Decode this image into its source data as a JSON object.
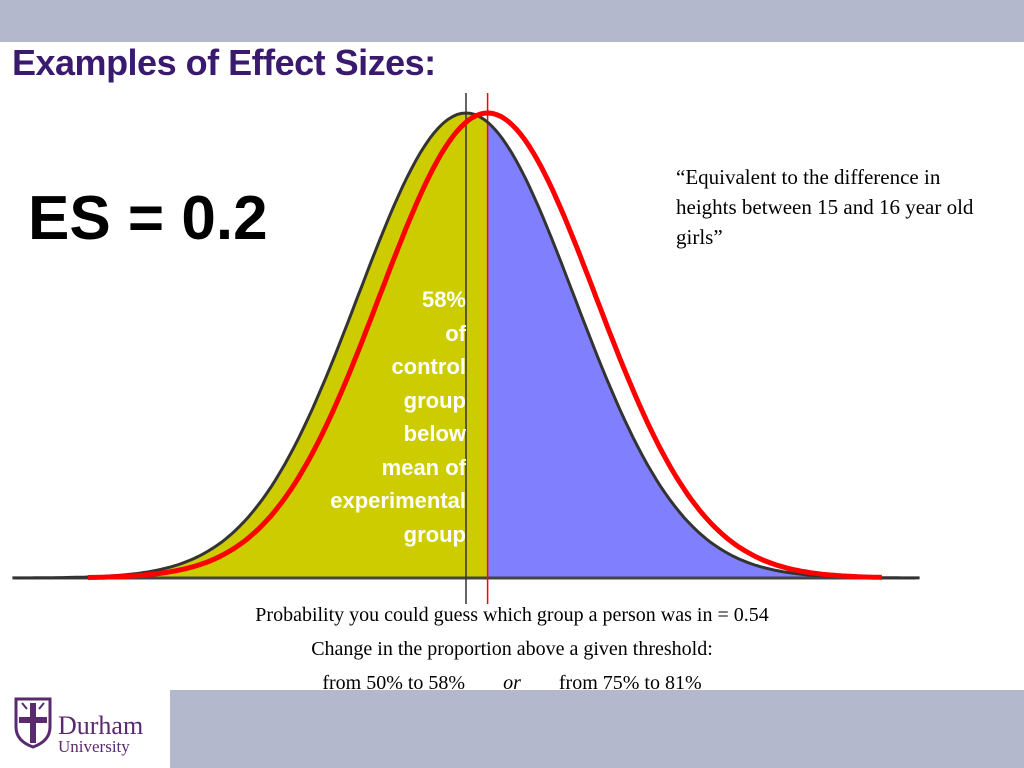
{
  "slide": {
    "title": "Examples of Effect Sizes:",
    "effect_size_label": "ES = 0.2",
    "quote": "“Equivalent to the difference in heights between 15 and 16 year old girls”",
    "shaded_region_label": [
      "58%",
      "of",
      "control",
      "group",
      "below",
      "mean of",
      "experimental",
      "group"
    ],
    "footer": {
      "line1": "Probability you could guess which group a person was in = 0.54",
      "line2": "Change in the proportion above a given threshold:",
      "line3_left": "from 50% to 58%",
      "line3_mid": "or",
      "line3_right": "from 75% to 81%"
    }
  },
  "logo": {
    "name": "Durham",
    "subtitle": "University"
  },
  "chart_data": {
    "type": "area",
    "distribution": "normal",
    "effect_size": 0.2,
    "curves": [
      {
        "role": "control group",
        "mean": 0,
        "sd": 1,
        "fill_below_mean_of_experimental": "#cccc00",
        "fill_above": "#8080ff",
        "stroke": "#333333"
      },
      {
        "role": "experimental group",
        "mean": 0.2,
        "sd": 1,
        "stroke": "#ff0000",
        "fill": "none"
      }
    ],
    "proportion_control_below_experimental_mean": 0.58,
    "colors": {
      "below_region": "#cccc00",
      "above_region": "#8080ff",
      "experimental_curve": "#ff0000",
      "control_outline": "#333333"
    }
  }
}
